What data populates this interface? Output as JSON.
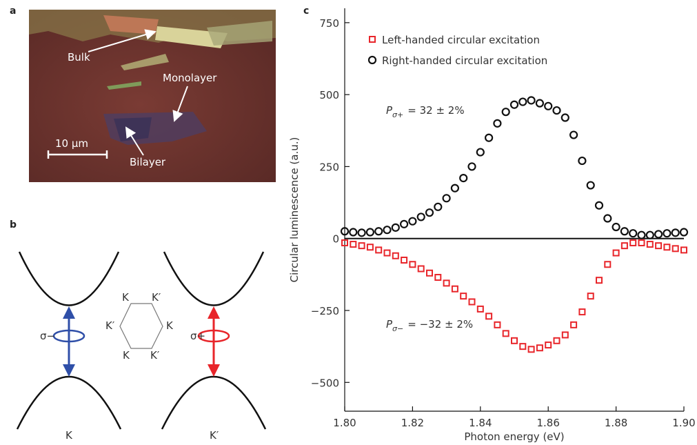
{
  "panel_labels": [
    "a",
    "b",
    "c"
  ],
  "panel_a": {
    "labels": [
      "Bulk",
      "Monolayer",
      "Bilayer"
    ],
    "scale_bar": "10 µm"
  },
  "panel_b": {
    "left_polarization": "σ−",
    "right_polarization": "σ+",
    "hexagon_labels": [
      "K",
      "K′",
      "K′",
      "K",
      "K",
      "K′"
    ],
    "valley_labels": [
      "K",
      "K′"
    ]
  },
  "chart_data": {
    "type": "scatter",
    "xlabel": "Photon energy (eV)",
    "ylabel": "Circular luminescence (a.u.)",
    "xlim": [
      1.8,
      1.9
    ],
    "ylim": [
      -600,
      800
    ],
    "xticks": [
      {
        "value": 1.8,
        "label": "1.80"
      },
      1.82,
      1.84,
      1.86,
      1.88,
      {
        "value": 1.9,
        "label": "1.90"
      }
    ],
    "yticks": [
      {
        "value": -500,
        "label": "−500"
      },
      {
        "value": -250,
        "label": "−250"
      },
      0,
      250,
      500,
      750
    ],
    "legend": "upper left",
    "x": [
      1.8,
      1.8025,
      1.805,
      1.8075,
      1.81,
      1.8125,
      1.815,
      1.8175,
      1.82,
      1.8225,
      1.825,
      1.8275,
      1.83,
      1.8325,
      1.835,
      1.8375,
      1.84,
      1.8425,
      1.845,
      1.8475,
      1.85,
      1.8525,
      1.855,
      1.8575,
      1.86,
      1.8625,
      1.865,
      1.8675,
      1.87,
      1.8725,
      1.875,
      1.8775,
      1.88,
      1.8825,
      1.885,
      1.8875,
      1.89,
      1.8925,
      1.895,
      1.8975,
      1.9
    ],
    "series": [
      {
        "name": "Left-handed circular excitation",
        "color": "#e8252a",
        "marker": "square",
        "values": [
          -15,
          -20,
          -25,
          -30,
          -40,
          -50,
          -60,
          -75,
          -90,
          -105,
          -120,
          -135,
          -155,
          -175,
          -200,
          -220,
          -245,
          -270,
          -300,
          -330,
          -355,
          -375,
          -385,
          -380,
          -370,
          -355,
          -335,
          -300,
          -255,
          -200,
          -145,
          -90,
          -50,
          -25,
          -15,
          -15,
          -20,
          -25,
          -30,
          -35,
          -40
        ]
      },
      {
        "name": "Right-handed circular excitation",
        "color": "#111111",
        "marker": "circle",
        "values": [
          25,
          22,
          20,
          22,
          25,
          30,
          38,
          50,
          60,
          75,
          90,
          110,
          140,
          175,
          210,
          250,
          300,
          350,
          400,
          440,
          465,
          475,
          480,
          470,
          460,
          445,
          420,
          360,
          270,
          185,
          115,
          70,
          40,
          25,
          18,
          12,
          12,
          15,
          18,
          20,
          22
        ]
      }
    ],
    "annotations": [
      {
        "symbol": "P",
        "subscript": "σ+",
        "text": "= 32 ± 2%"
      },
      {
        "symbol": "P",
        "subscript": "σ−",
        "text": "= −32 ± 2%"
      }
    ]
  }
}
